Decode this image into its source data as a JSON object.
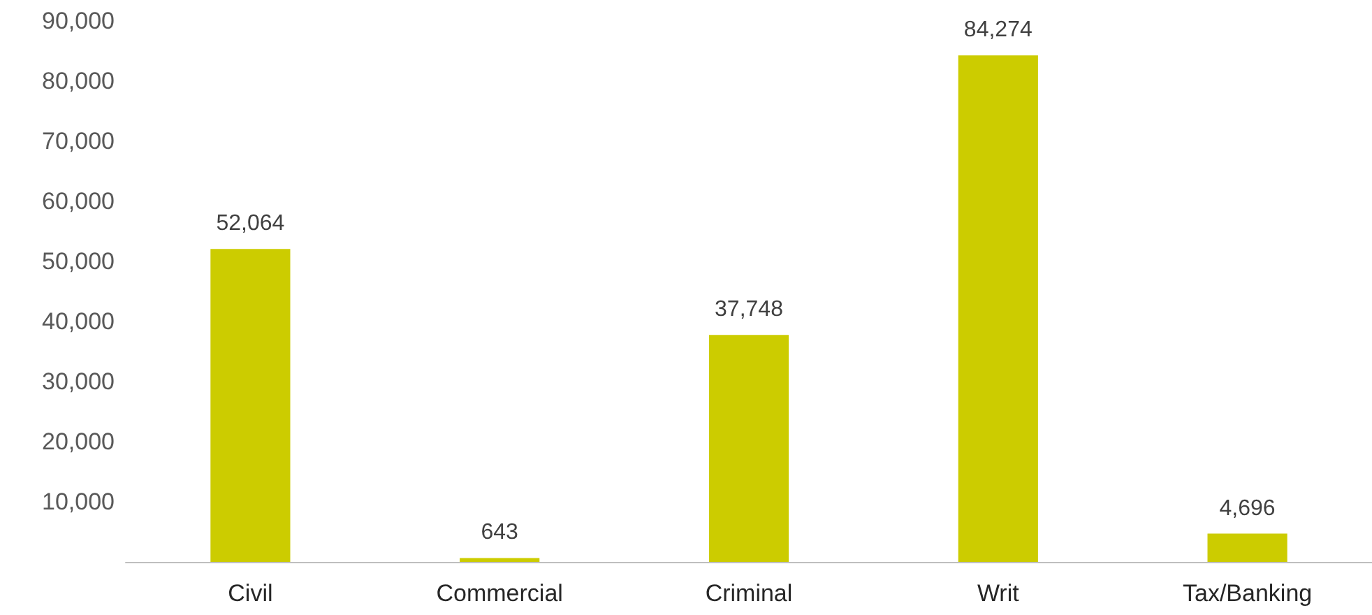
{
  "chart_data": {
    "type": "bar",
    "categories": [
      "Civil",
      "Commercial",
      "Criminal",
      "Writ",
      "Tax/Banking"
    ],
    "values": [
      52064,
      643,
      37748,
      84274,
      4696
    ],
    "value_labels": [
      "52,064",
      "643",
      "37,748",
      "84,274",
      "4,696"
    ],
    "color": "#cccc00",
    "ylim": [
      0,
      90000
    ],
    "yticks": [
      {
        "value": 0,
        "label": null
      },
      {
        "value": 10000,
        "label": "10,000"
      },
      {
        "value": 20000,
        "label": "20,000"
      },
      {
        "value": 30000,
        "label": "30,000"
      },
      {
        "value": 40000,
        "label": "40,000"
      },
      {
        "value": 50000,
        "label": "50,000"
      },
      {
        "value": 60000,
        "label": "60,000"
      },
      {
        "value": 70000,
        "label": "70,000"
      },
      {
        "value": 80000,
        "label": "80,000"
      },
      {
        "value": 90000,
        "label": "90,000"
      }
    ],
    "grid": false
  }
}
